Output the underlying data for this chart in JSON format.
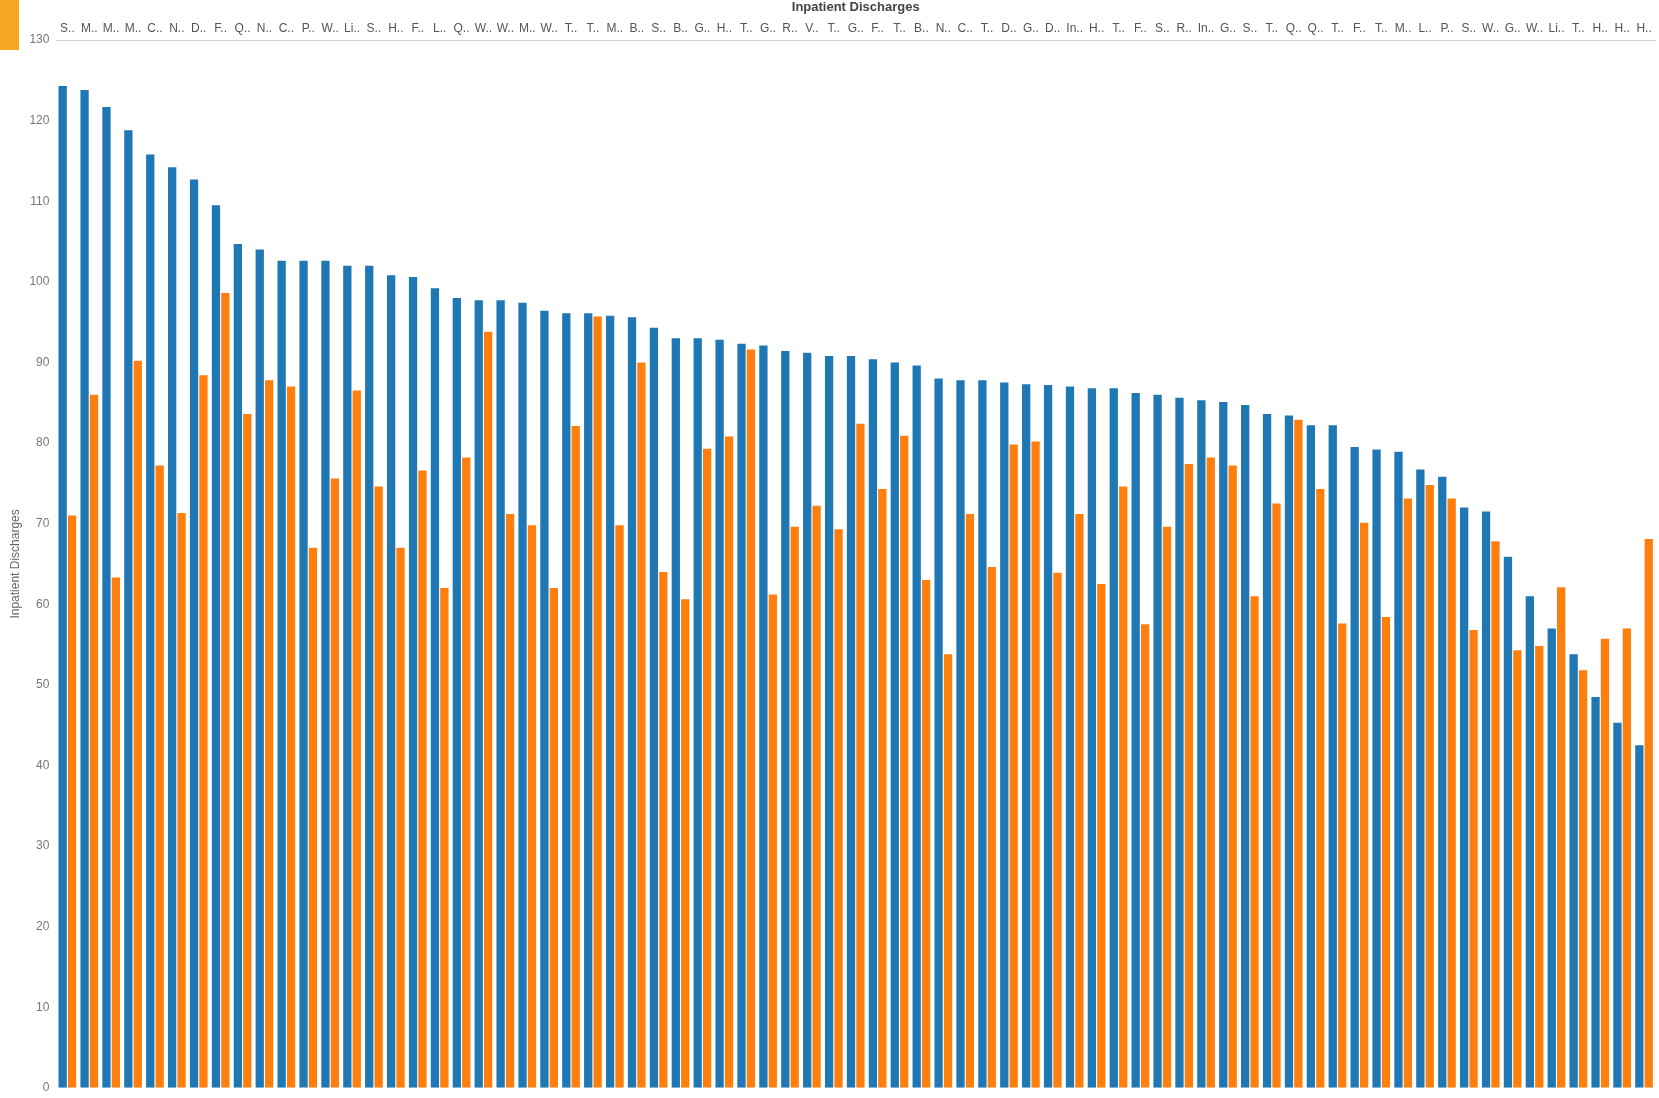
{
  "chart_data": {
    "type": "bar",
    "xlabel": "Inpatient Discharges",
    "ylabel": "Inpatient Discharges",
    "categories": [
      "S..",
      "M..",
      "M..",
      "M..",
      "C..",
      "N..",
      "D..",
      "F..",
      "Q..",
      "N..",
      "C..",
      "P..",
      "W..",
      "Li..",
      "S..",
      "H..",
      "F..",
      "L..",
      "Q..",
      "W..",
      "W..",
      "M..",
      "W..",
      "T..",
      "T..",
      "M..",
      "B..",
      "S..",
      "B..",
      "G..",
      "H..",
      "T..",
      "G..",
      "R..",
      "V..",
      "T..",
      "G..",
      "F..",
      "T..",
      "B..",
      "N..",
      "C..",
      "T..",
      "D..",
      "G..",
      "D..",
      "In..",
      "H..",
      "T..",
      "F..",
      "S..",
      "R..",
      "In..",
      "G..",
      "S..",
      "T..",
      "Q..",
      "Q..",
      "T..",
      "F..",
      "T..",
      "M..",
      "L..",
      "P..",
      "S..",
      "W..",
      "G..",
      "W..",
      "Li..",
      "T..",
      "H..",
      "H..",
      "H.."
    ],
    "series": [
      {
        "color": "#1f77b4",
        "values": [
          124.3,
          123.8,
          121.7,
          118.8,
          115.8,
          114.2,
          112.7,
          109.5,
          104.7,
          104,
          102.6,
          102.6,
          102.6,
          102,
          102,
          100.8,
          100.6,
          99.2,
          98,
          97.7,
          97.7,
          97.4,
          96.4,
          96.1,
          96.1,
          95.8,
          95.6,
          94.3,
          93,
          93,
          92.8,
          92.3,
          92.1,
          91.4,
          91.2,
          90.8,
          90.8,
          90.4,
          90,
          89.6,
          88,
          87.8,
          87.8,
          87.5,
          87.3,
          87.2,
          87,
          86.8,
          86.8,
          86.2,
          86,
          85.6,
          85.3,
          85.1,
          84.7,
          83.6,
          83.4,
          82.2,
          82.2,
          79.5,
          79.2,
          78.9,
          76.7,
          75.8,
          72,
          71.5,
          65.9,
          61,
          57,
          53.8,
          48.5,
          45.3,
          42.5
        ]
      },
      {
        "color": "#ff7f0e",
        "values": [
          71,
          86,
          63.3,
          90.2,
          77.2,
          71.3,
          88.4,
          98.6,
          83.6,
          87.8,
          87,
          67,
          75.6,
          86.5,
          74.6,
          67,
          76.6,
          62,
          78.2,
          93.8,
          71.2,
          69.8,
          62,
          82.1,
          95.7,
          69.8,
          90,
          64,
          60.6,
          79.3,
          80.8,
          91.6,
          61.2,
          69.6,
          72.2,
          69.3,
          82.4,
          74.3,
          80.9,
          63,
          53.8,
          71.2,
          64.6,
          79.8,
          80.2,
          63.9,
          71.2,
          62.5,
          74.6,
          57.5,
          69.6,
          77.4,
          78.2,
          77.2,
          61,
          72.5,
          82.9,
          74.3,
          57.6,
          70.1,
          58.4,
          73.1,
          74.8,
          73.1,
          56.8,
          67.8,
          54.3,
          54.8,
          62.1,
          51.8,
          55.7,
          57,
          68.1
        ]
      }
    ],
    "ylim": [
      0,
      130
    ],
    "yticks": [
      0,
      10,
      20,
      30,
      40,
      50,
      60,
      70,
      80,
      90,
      100,
      110,
      120,
      130
    ]
  }
}
